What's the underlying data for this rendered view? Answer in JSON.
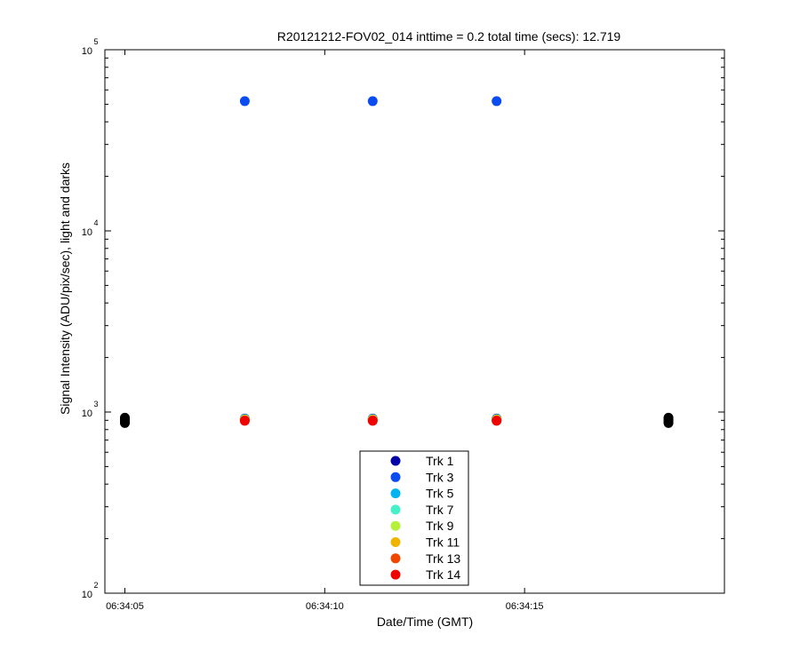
{
  "chart_data": {
    "type": "scatter",
    "title": "R20121212-FOV02_014 inttime = 0.2 total time (secs): 12.719",
    "xlabel": "Date/Time (GMT)",
    "ylabel": "Signal Intensity (ADU/pix/sec), light and darks",
    "y_scale": "log",
    "ylim": [
      100,
      100000
    ],
    "xlim": [
      "06:34:04.5",
      "06:34:20.0"
    ],
    "x_ticks": [
      "06:34:05",
      "06:34:10",
      "06:34:15"
    ],
    "y_ticks": [
      {
        "base": "10",
        "exp": "2"
      },
      {
        "base": "10",
        "exp": "3"
      },
      {
        "base": "10",
        "exp": "4"
      },
      {
        "base": "10",
        "exp": "5"
      }
    ],
    "legend_position": "bottom-center",
    "series": [
      {
        "name": "Trk 1",
        "color": "#0000a8",
        "x": [
          "06:34:08",
          "06:34:11.2",
          "06:34:14.3"
        ],
        "y": [
          920,
          920,
          920
        ]
      },
      {
        "name": "Trk 3",
        "color": "#0a4cf0",
        "x": [
          "06:34:08",
          "06:34:11.2",
          "06:34:14.3"
        ],
        "y": [
          52000,
          52000,
          52000
        ]
      },
      {
        "name": "Trk 5",
        "color": "#00b4f0",
        "x": [
          "06:34:08",
          "06:34:11.2",
          "06:34:14.3"
        ],
        "y": [
          915,
          915,
          915
        ]
      },
      {
        "name": "Trk 7",
        "color": "#46f0c8",
        "x": [
          "06:34:08",
          "06:34:11.2",
          "06:34:14.3"
        ],
        "y": [
          912,
          912,
          912
        ]
      },
      {
        "name": "Trk 9",
        "color": "#b4f03c",
        "x": [
          "06:34:08",
          "06:34:11.2",
          "06:34:14.3"
        ],
        "y": [
          910,
          910,
          910
        ]
      },
      {
        "name": "Trk 11",
        "color": "#f0b400",
        "x": [
          "06:34:08",
          "06:34:11.2",
          "06:34:14.3"
        ],
        "y": [
          905,
          905,
          905
        ]
      },
      {
        "name": "Trk 13",
        "color": "#f04600",
        "x": [
          "06:34:08",
          "06:34:11.2",
          "06:34:14.3"
        ],
        "y": [
          900,
          900,
          900
        ]
      },
      {
        "name": "Trk 14",
        "color": "#f00000",
        "x": [
          "06:34:08",
          "06:34:11.2",
          "06:34:14.3"
        ],
        "y": [
          895,
          895,
          895
        ]
      }
    ],
    "darks": {
      "color": "#000000",
      "x": [
        "06:34:05",
        "06:34:05",
        "06:34:05",
        "06:34:05",
        "06:34:05",
        "06:34:18.6",
        "06:34:18.6",
        "06:34:18.6",
        "06:34:18.6",
        "06:34:18.6"
      ],
      "y": [
        870,
        885,
        900,
        915,
        930,
        870,
        885,
        900,
        915,
        930
      ]
    }
  }
}
